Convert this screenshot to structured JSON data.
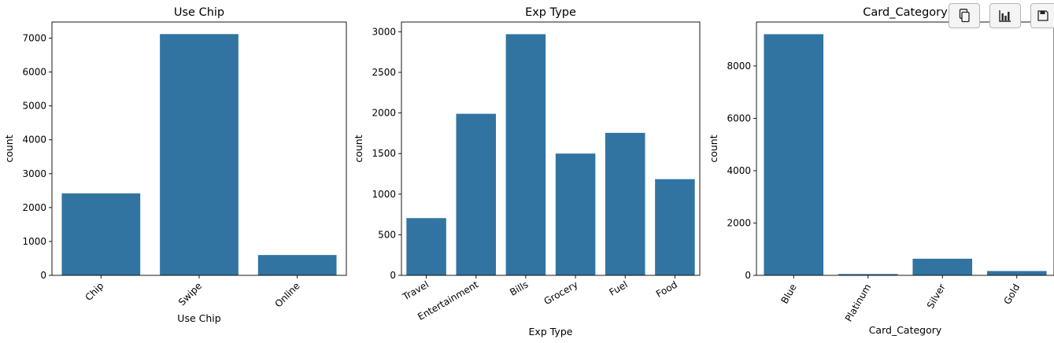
{
  "colors": {
    "bar": "#3274a1",
    "axis": "#000000"
  },
  "toolbar": {
    "icons": [
      "copy-icon",
      "bar-chart-icon",
      "save-icon"
    ]
  },
  "chart_data": [
    {
      "type": "bar",
      "title": "Use Chip",
      "xlabel": "Use Chip",
      "ylabel": "count",
      "categories": [
        "Chip",
        "Swipe",
        "Online"
      ],
      "values": [
        2420,
        7120,
        600
      ],
      "ylim": [
        0,
        7476
      ],
      "yticks": [
        0,
        1000,
        2000,
        3000,
        4000,
        5000,
        6000,
        7000
      ],
      "ytick_labels": [
        "0",
        "1000",
        "2000",
        "3000",
        "4000",
        "5000",
        "6000",
        "7000"
      ]
    },
    {
      "type": "bar",
      "title": "Exp Type",
      "xlabel": "Exp Type",
      "ylabel": "count",
      "categories": [
        "Travel",
        "Entertainment",
        "Bills",
        "Grocery",
        "Fuel",
        "Food"
      ],
      "values": [
        705,
        1990,
        2970,
        1500,
        1755,
        1185
      ],
      "ylim": [
        0,
        3120
      ],
      "yticks": [
        0,
        500,
        1000,
        1500,
        2000,
        2500,
        3000
      ],
      "ytick_labels": [
        "0",
        "500",
        "1000",
        "1500",
        "2000",
        "2500",
        "3000"
      ]
    },
    {
      "type": "bar",
      "title": "Card_Category",
      "xlabel": "Card_Category",
      "ylabel": "count",
      "categories": [
        "Blue",
        "Platinum",
        "Silver",
        "Gold"
      ],
      "values": [
        9215,
        50,
        635,
        165
      ],
      "ylim": [
        0,
        9680
      ],
      "yticks": [
        0,
        2000,
        4000,
        6000,
        8000
      ],
      "ytick_labels": [
        "0",
        "2000",
        "4000",
        "6000",
        "8000"
      ]
    }
  ]
}
